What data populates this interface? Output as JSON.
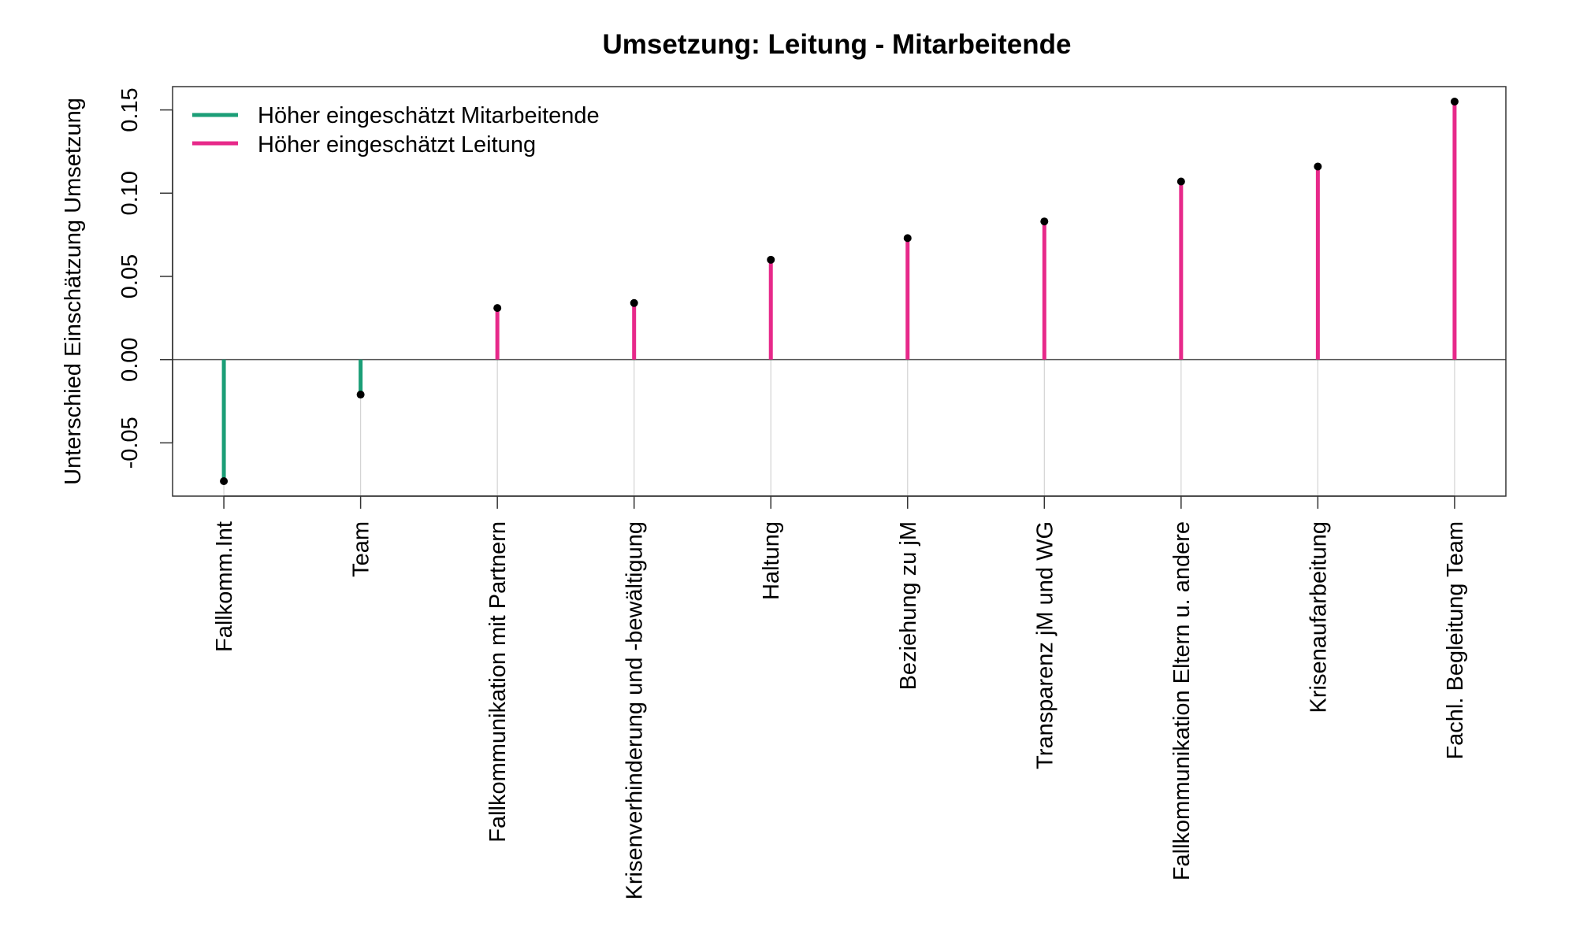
{
  "chart_data": {
    "type": "lollipop",
    "title": "Umsetzung: Leitung - Mitarbeitende",
    "xlabel": "",
    "ylabel": "Unterschied Einschätzung Umsetzung",
    "ylim": [
      -0.082,
      0.164
    ],
    "yticks": [
      "-0.05",
      "0.00",
      "0.05",
      "0.10",
      "0.15"
    ],
    "ytick_values": [
      -0.05,
      0.0,
      0.05,
      0.1,
      0.15
    ],
    "grid": "vertical guide lines below zero",
    "reference_line": 0,
    "categories": [
      "Fallkomm.Int",
      "Team",
      "Fallkommunikation mit Partnern",
      "Krisenverhinderung und -bewältigung",
      "Haltung",
      "Beziehung zu jM",
      "Transparenz jM und WG",
      "Fallkommunikation Eltern u. andere",
      "Krisenaufarbeitung",
      "Fachl. Begleitung Team"
    ],
    "values": [
      -0.073,
      -0.021,
      0.031,
      0.034,
      0.06,
      0.073,
      0.083,
      0.107,
      0.116,
      0.155
    ],
    "legend": {
      "position": "top-left",
      "entries": [
        {
          "label": "Höher eingeschätzt Mitarbeitende",
          "color": "#1b9e77"
        },
        {
          "label": "Höher eingeschätzt Leitung",
          "color": "#e7298a"
        }
      ]
    },
    "colors": {
      "negative": "#1b9e77",
      "positive": "#e7298a",
      "point": "#000000",
      "zero_line": "#555555",
      "guide": "#d3d3d3"
    }
  }
}
